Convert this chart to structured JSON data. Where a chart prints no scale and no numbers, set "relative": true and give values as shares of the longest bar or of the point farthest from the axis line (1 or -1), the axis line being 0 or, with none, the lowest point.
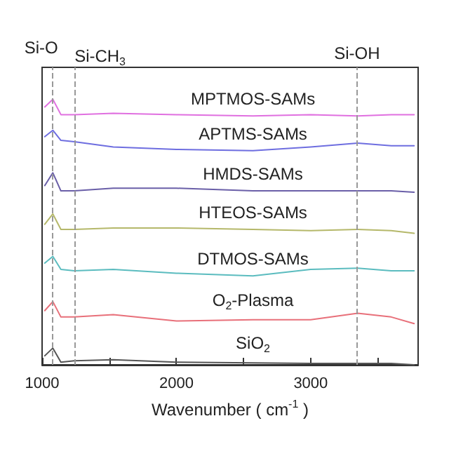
{
  "chart_data": {
    "type": "line",
    "relative": true,
    "xlabel": "Wavenumber ( cm$^{-1}$ )",
    "xlim": [
      1000,
      3800
    ],
    "xticks": [
      1000,
      {
        "value": 1500,
        "label": null
      },
      2000,
      {
        "value": 2500,
        "label": null
      },
      3000,
      {
        "value": 3500,
        "label": null
      }
    ],
    "x": [
      1020,
      1080,
      1140,
      1240,
      1530,
      2000,
      2570,
      3000,
      3350,
      3600,
      3770
    ],
    "marker": "none",
    "line_style": "solid",
    "series": [
      {
        "name": "SiO$_{2}$",
        "color": "#555555",
        "values": [
          0.034,
          0.063,
          0.01,
          0.015,
          0.019,
          0.01,
          0.007,
          0.005,
          0.005,
          0.005,
          0
        ]
      },
      {
        "name": "O$_{2}$-Plasma",
        "color": "#e8707a",
        "values": [
          0.204,
          0.238,
          0.18,
          0.18,
          0.189,
          0.165,
          0.17,
          0.17,
          0.194,
          0.18,
          0.155
        ]
      },
      {
        "name": "DTMOS-SAMs",
        "color": "#5bbcbf",
        "values": [
          0.383,
          0.408,
          0.359,
          0.354,
          0.359,
          0.345,
          0.335,
          0.359,
          0.364,
          0.354,
          0.354
        ]
      },
      {
        "name": "HTEOS-SAMs",
        "color": "#b5b86a",
        "values": [
          0.529,
          0.568,
          0.51,
          0.51,
          0.515,
          0.515,
          0.51,
          0.505,
          0.51,
          0.505,
          0.495
        ]
      },
      {
        "name": "HMDS-SAMs",
        "color": "#6a5fa8",
        "values": [
          0.675,
          0.723,
          0.655,
          0.655,
          0.665,
          0.665,
          0.655,
          0.655,
          0.655,
          0.655,
          0.65
        ]
      },
      {
        "name": "APTMS-SAMs",
        "color": "#6e6ee0",
        "values": [
          0.859,
          0.883,
          0.845,
          0.84,
          0.82,
          0.811,
          0.806,
          0.82,
          0.835,
          0.825,
          0.825
        ]
      },
      {
        "name": "MPTMOS-SAMs",
        "color": "#e070e0",
        "values": [
          0.971,
          1,
          0.942,
          0.942,
          0.947,
          0.942,
          0.937,
          0.942,
          0.937,
          0.942,
          0.942
        ]
      }
    ],
    "ref_lines": [
      {
        "axis": "x",
        "value": 1077,
        "label": "Si-O",
        "color": "#999999",
        "line_style": "dashed"
      },
      {
        "axis": "x",
        "value": 1241,
        "label": "Si-CH$_{3}$",
        "color": "#999999",
        "line_style": "dashed"
      },
      {
        "axis": "x",
        "value": 3345,
        "label": "Si-OH",
        "color": "#999999",
        "line_style": "dashed"
      }
    ]
  }
}
